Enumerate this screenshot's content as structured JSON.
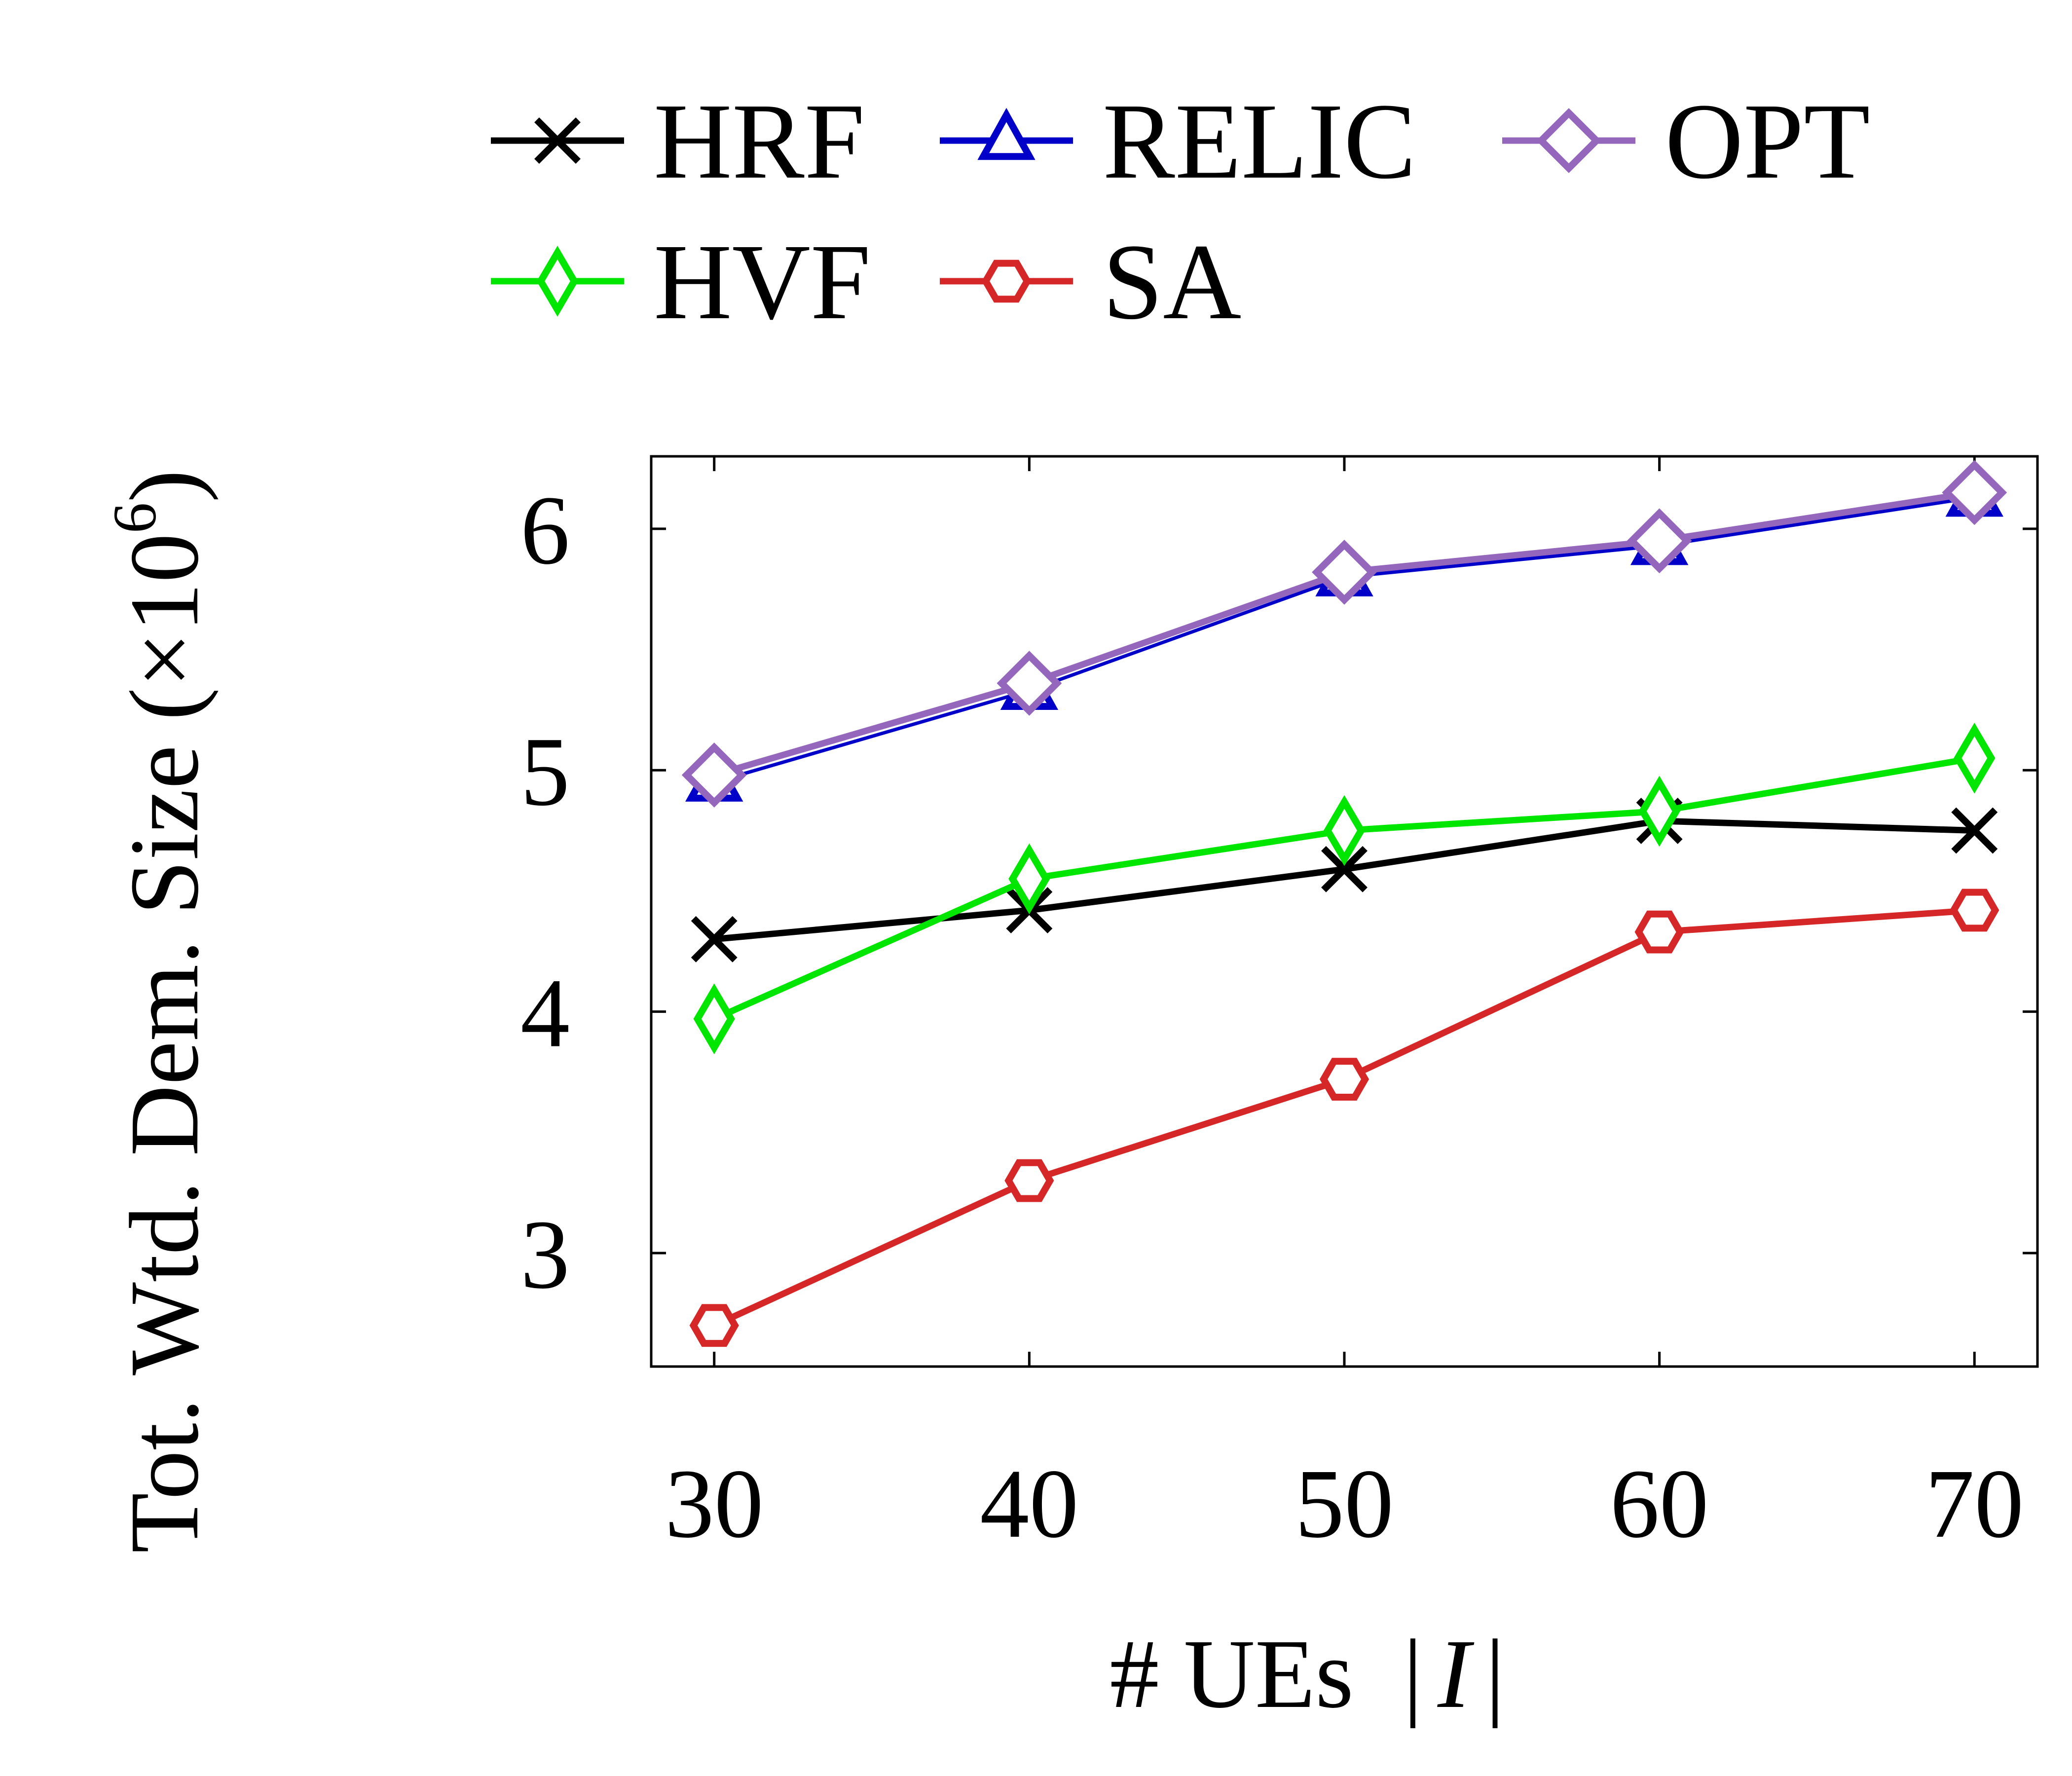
{
  "chart_data": {
    "type": "line",
    "x": [
      30,
      40,
      50,
      60,
      70
    ],
    "xticks": [
      "30",
      "40",
      "50",
      "60",
      "70"
    ],
    "yticks": [
      "3",
      "4",
      "5",
      "6"
    ],
    "xlim": [
      28,
      72
    ],
    "ylim": [
      2.53,
      6.3
    ],
    "xlabel": "# UEs |I|",
    "xlabel_parts": {
      "prefix": "# UEs  ",
      "bar_left": "|",
      "var": "I",
      "bar_right": "|"
    },
    "ylabel": "Tot. Wtd. Dem. Size (×10^6)",
    "ylabel_parts": {
      "main": "Tot. Wtd. Dem. Size (×10",
      "exp": "6",
      "close": ")"
    },
    "legend_position": "top",
    "grid": false,
    "series": [
      {
        "name": "HRF",
        "color": "#000000",
        "marker": "x",
        "values": [
          4.3,
          4.42,
          4.59,
          4.79,
          4.75
        ]
      },
      {
        "name": "RELIC",
        "color": "#0000c8",
        "marker": "triangle",
        "values": [
          4.95,
          5.33,
          5.8,
          5.93,
          6.13
        ]
      },
      {
        "name": "OPT",
        "color": "#9467bd",
        "marker": "diamond",
        "values": [
          4.98,
          5.36,
          5.82,
          5.95,
          6.15
        ]
      },
      {
        "name": "HVF",
        "color": "#00e600",
        "marker": "thin-diamond",
        "values": [
          3.97,
          4.55,
          4.75,
          4.83,
          5.05
        ]
      },
      {
        "name": "SA",
        "color": "#d62728",
        "marker": "hexagon",
        "values": [
          2.7,
          3.3,
          3.72,
          4.33,
          4.42
        ]
      }
    ]
  }
}
